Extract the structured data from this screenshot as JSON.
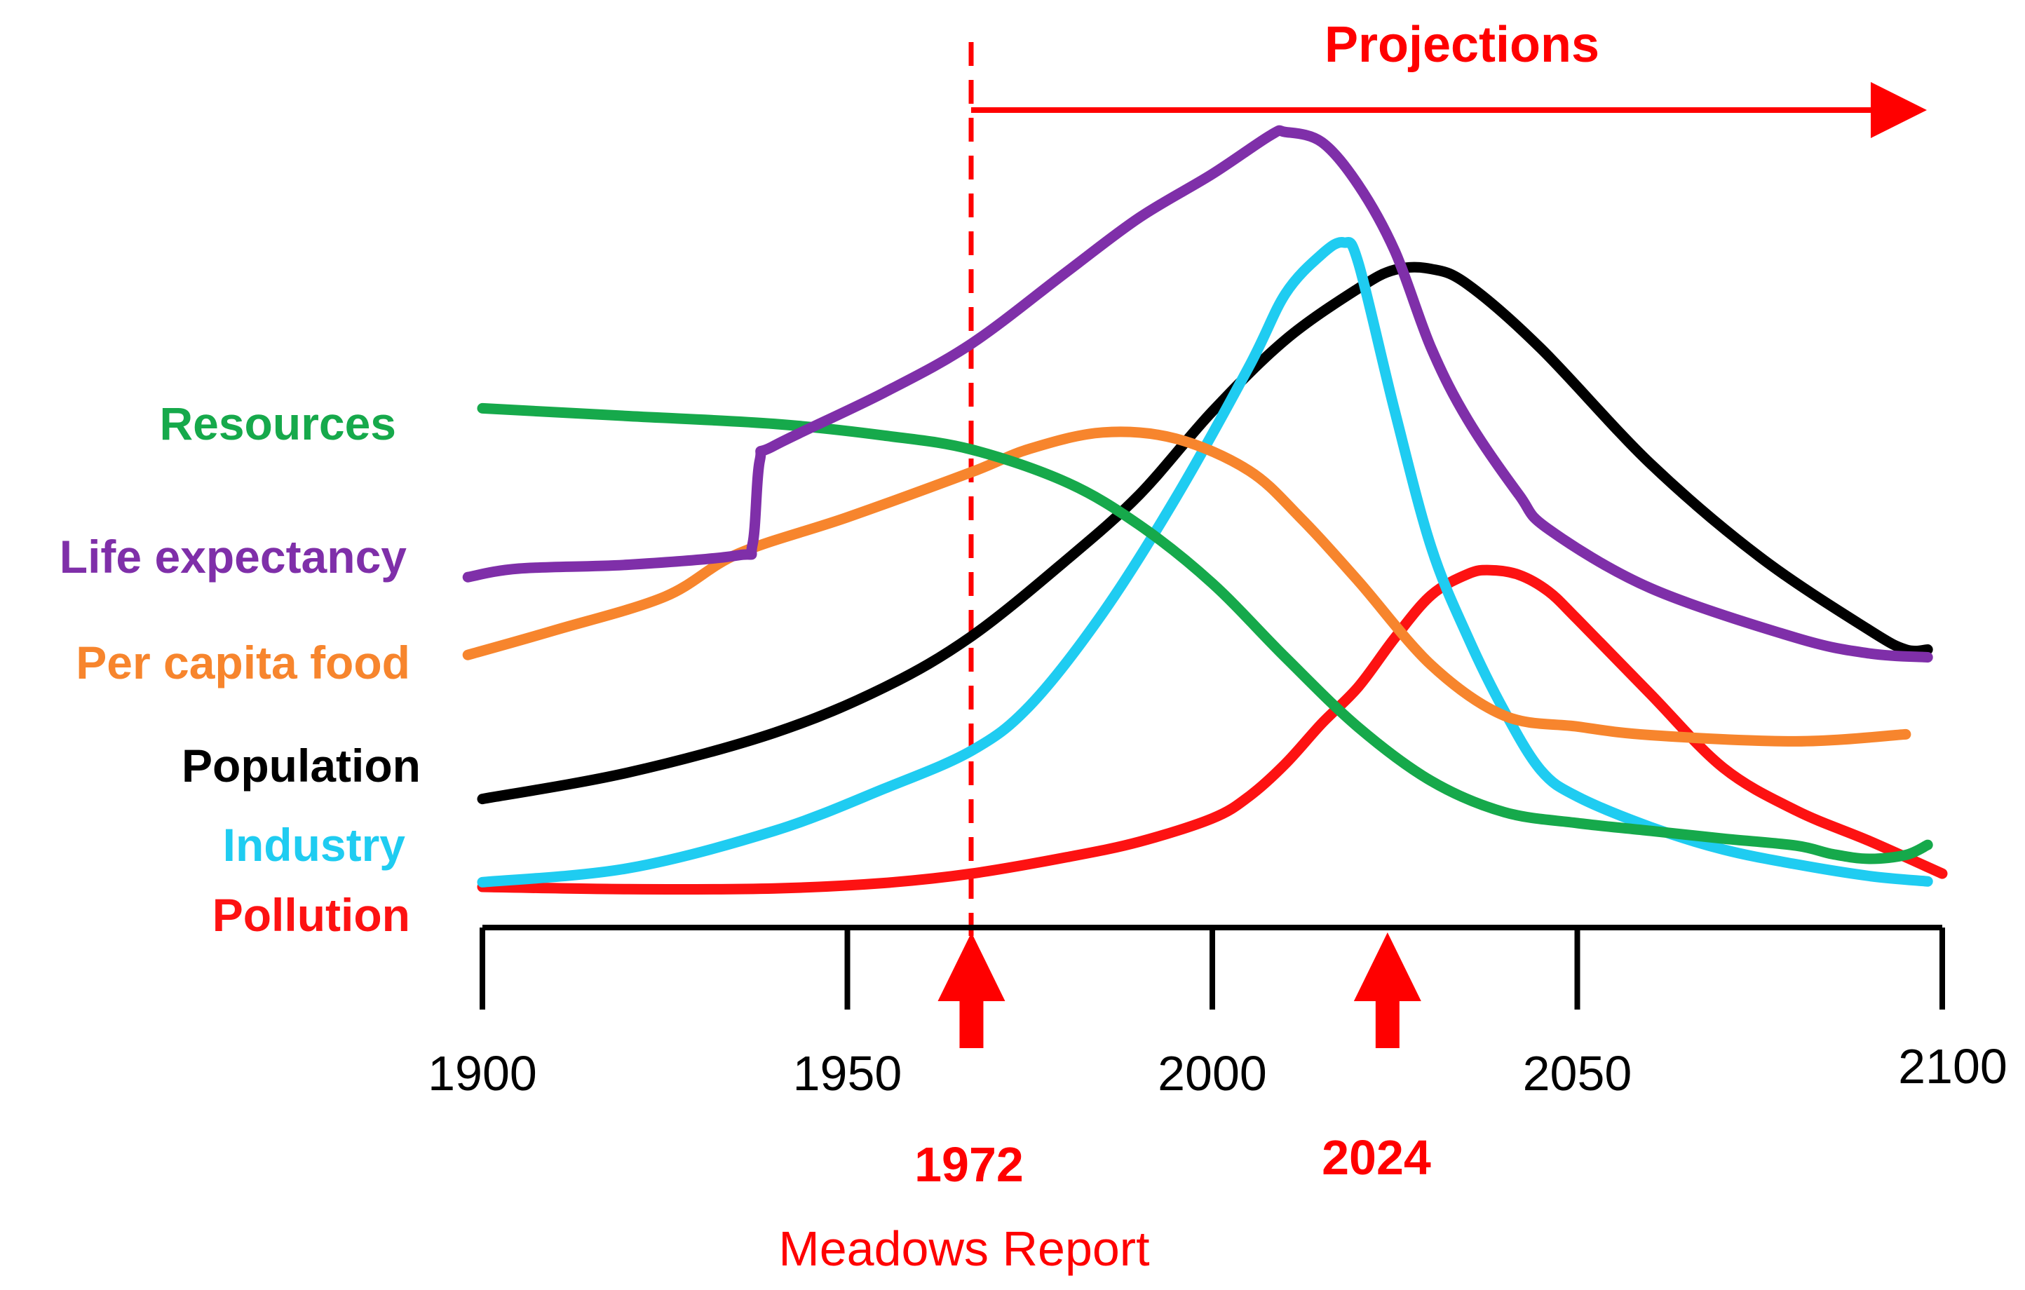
{
  "chart_data": {
    "type": "line",
    "title": "",
    "xlabel": "",
    "ylabel": "",
    "xlim": [
      1900,
      2100
    ],
    "ylim": [
      0,
      100
    ],
    "grid": false,
    "x_ticks": [
      1900,
      1950,
      2000,
      2050,
      2100
    ],
    "x_tick_labels": [
      "1900",
      "1950",
      "2000",
      "2050",
      "2100"
    ],
    "series": [
      {
        "name": "Resources",
        "color": "#16a94b",
        "x": [
          1900,
          1920,
          1940,
          1955,
          1967,
          1980,
          1990,
          2000,
          2010,
          2020,
          2030,
          2040,
          2050,
          2060,
          2070,
          2080,
          2085,
          2090,
          2095,
          2098
        ],
        "y": [
          61.5,
          60.5,
          59.5,
          58,
          56.2,
          52,
          46.5,
          39,
          29.5,
          20.5,
          13.6,
          9.6,
          8.2,
          7.2,
          6.2,
          5.3,
          4.2,
          3.6,
          4.1,
          5.4
        ]
      },
      {
        "name": "Life expectancy",
        "color": "#7f2fa9",
        "x": [
          1898,
          1905,
          1920,
          1935,
          1937,
          1938,
          1940,
          1955,
          1967,
          1980,
          1990,
          2000,
          2008,
          2010,
          2015,
          2020,
          2025,
          2030,
          2035,
          2042,
          2046,
          2060,
          2080,
          2090,
          2098
        ],
        "y": [
          39.8,
          40.9,
          41.4,
          42.6,
          44,
          54.8,
          56.7,
          63.5,
          69.8,
          79,
          86,
          91.6,
          96.6,
          97,
          95.7,
          90.2,
          81.7,
          69.2,
          60,
          50.4,
          46,
          38.4,
          32,
          30,
          29.5
        ]
      },
      {
        "name": "Per capita food",
        "color": "#f7852d",
        "x": [
          1898,
          1910,
          1925,
          1935,
          1950,
          1967,
          1975,
          1985,
          1995,
          2005,
          2012,
          2020,
          2030,
          2040,
          2050,
          2060,
          2080,
          2095
        ],
        "y": [
          29.8,
          33,
          37.3,
          42.8,
          47.5,
          53.3,
          56.3,
          58.4,
          57.6,
          53.5,
          47.5,
          39.3,
          28.5,
          22,
          20.6,
          19.5,
          18.7,
          19.6
        ]
      },
      {
        "name": "Population",
        "color": "#000000",
        "x": [
          1900,
          1920,
          1940,
          1955,
          1967,
          1980,
          1990,
          2000,
          2010,
          2020,
          2025,
          2030,
          2035,
          2045,
          2060,
          2075,
          2090,
          2095,
          2098
        ],
        "y": [
          11.3,
          14.7,
          19.8,
          25.6,
          32.2,
          42,
          50.4,
          61.1,
          70.3,
          76.9,
          79.3,
          79.4,
          77.4,
          69.2,
          54.4,
          42.4,
          33,
          30.5,
          30.5
        ]
      },
      {
        "name": "Industry",
        "color": "#1fccf1",
        "x": [
          1900,
          1920,
          1940,
          1955,
          1967,
          1975,
          1985,
          1995,
          2005,
          2010,
          2015,
          2018,
          2020,
          2025,
          2030,
          2035,
          2040,
          2045,
          2050,
          2060,
          2070,
          2080,
          2090,
          2098
        ],
        "y": [
          0.6,
          2.4,
          7.2,
          12.6,
          17.5,
          23.3,
          35.2,
          50,
          66.8,
          76.2,
          81.3,
          82.8,
          80.2,
          61.1,
          43.6,
          32.1,
          22.6,
          15,
          11.6,
          7.7,
          4.8,
          2.9,
          1.4,
          0.7
        ]
      },
      {
        "name": "Pollution",
        "color": "#fd1212",
        "x": [
          1900,
          1920,
          1940,
          1955,
          1967,
          1980,
          1990,
          2000,
          2005,
          2010,
          2015,
          2020,
          2025,
          2030,
          2035,
          2038,
          2042,
          2046,
          2050,
          2060,
          2070,
          2080,
          2090,
          2100
        ],
        "y": [
          0,
          -0.3,
          -0.2,
          0.5,
          1.7,
          3.8,
          5.8,
          8.8,
          11.6,
          15.8,
          21,
          25.7,
          32,
          37.5,
          40.2,
          40.7,
          40.1,
          38,
          34.4,
          24.8,
          15.3,
          9.8,
          5.9,
          1.7
        ]
      }
    ],
    "annotations": {
      "projections": "Projections",
      "marker_1972": {
        "x": 1967,
        "label": "1972",
        "caption": "Meadows Report"
      },
      "marker_2024": {
        "x": 2024,
        "label": "2024"
      }
    }
  }
}
